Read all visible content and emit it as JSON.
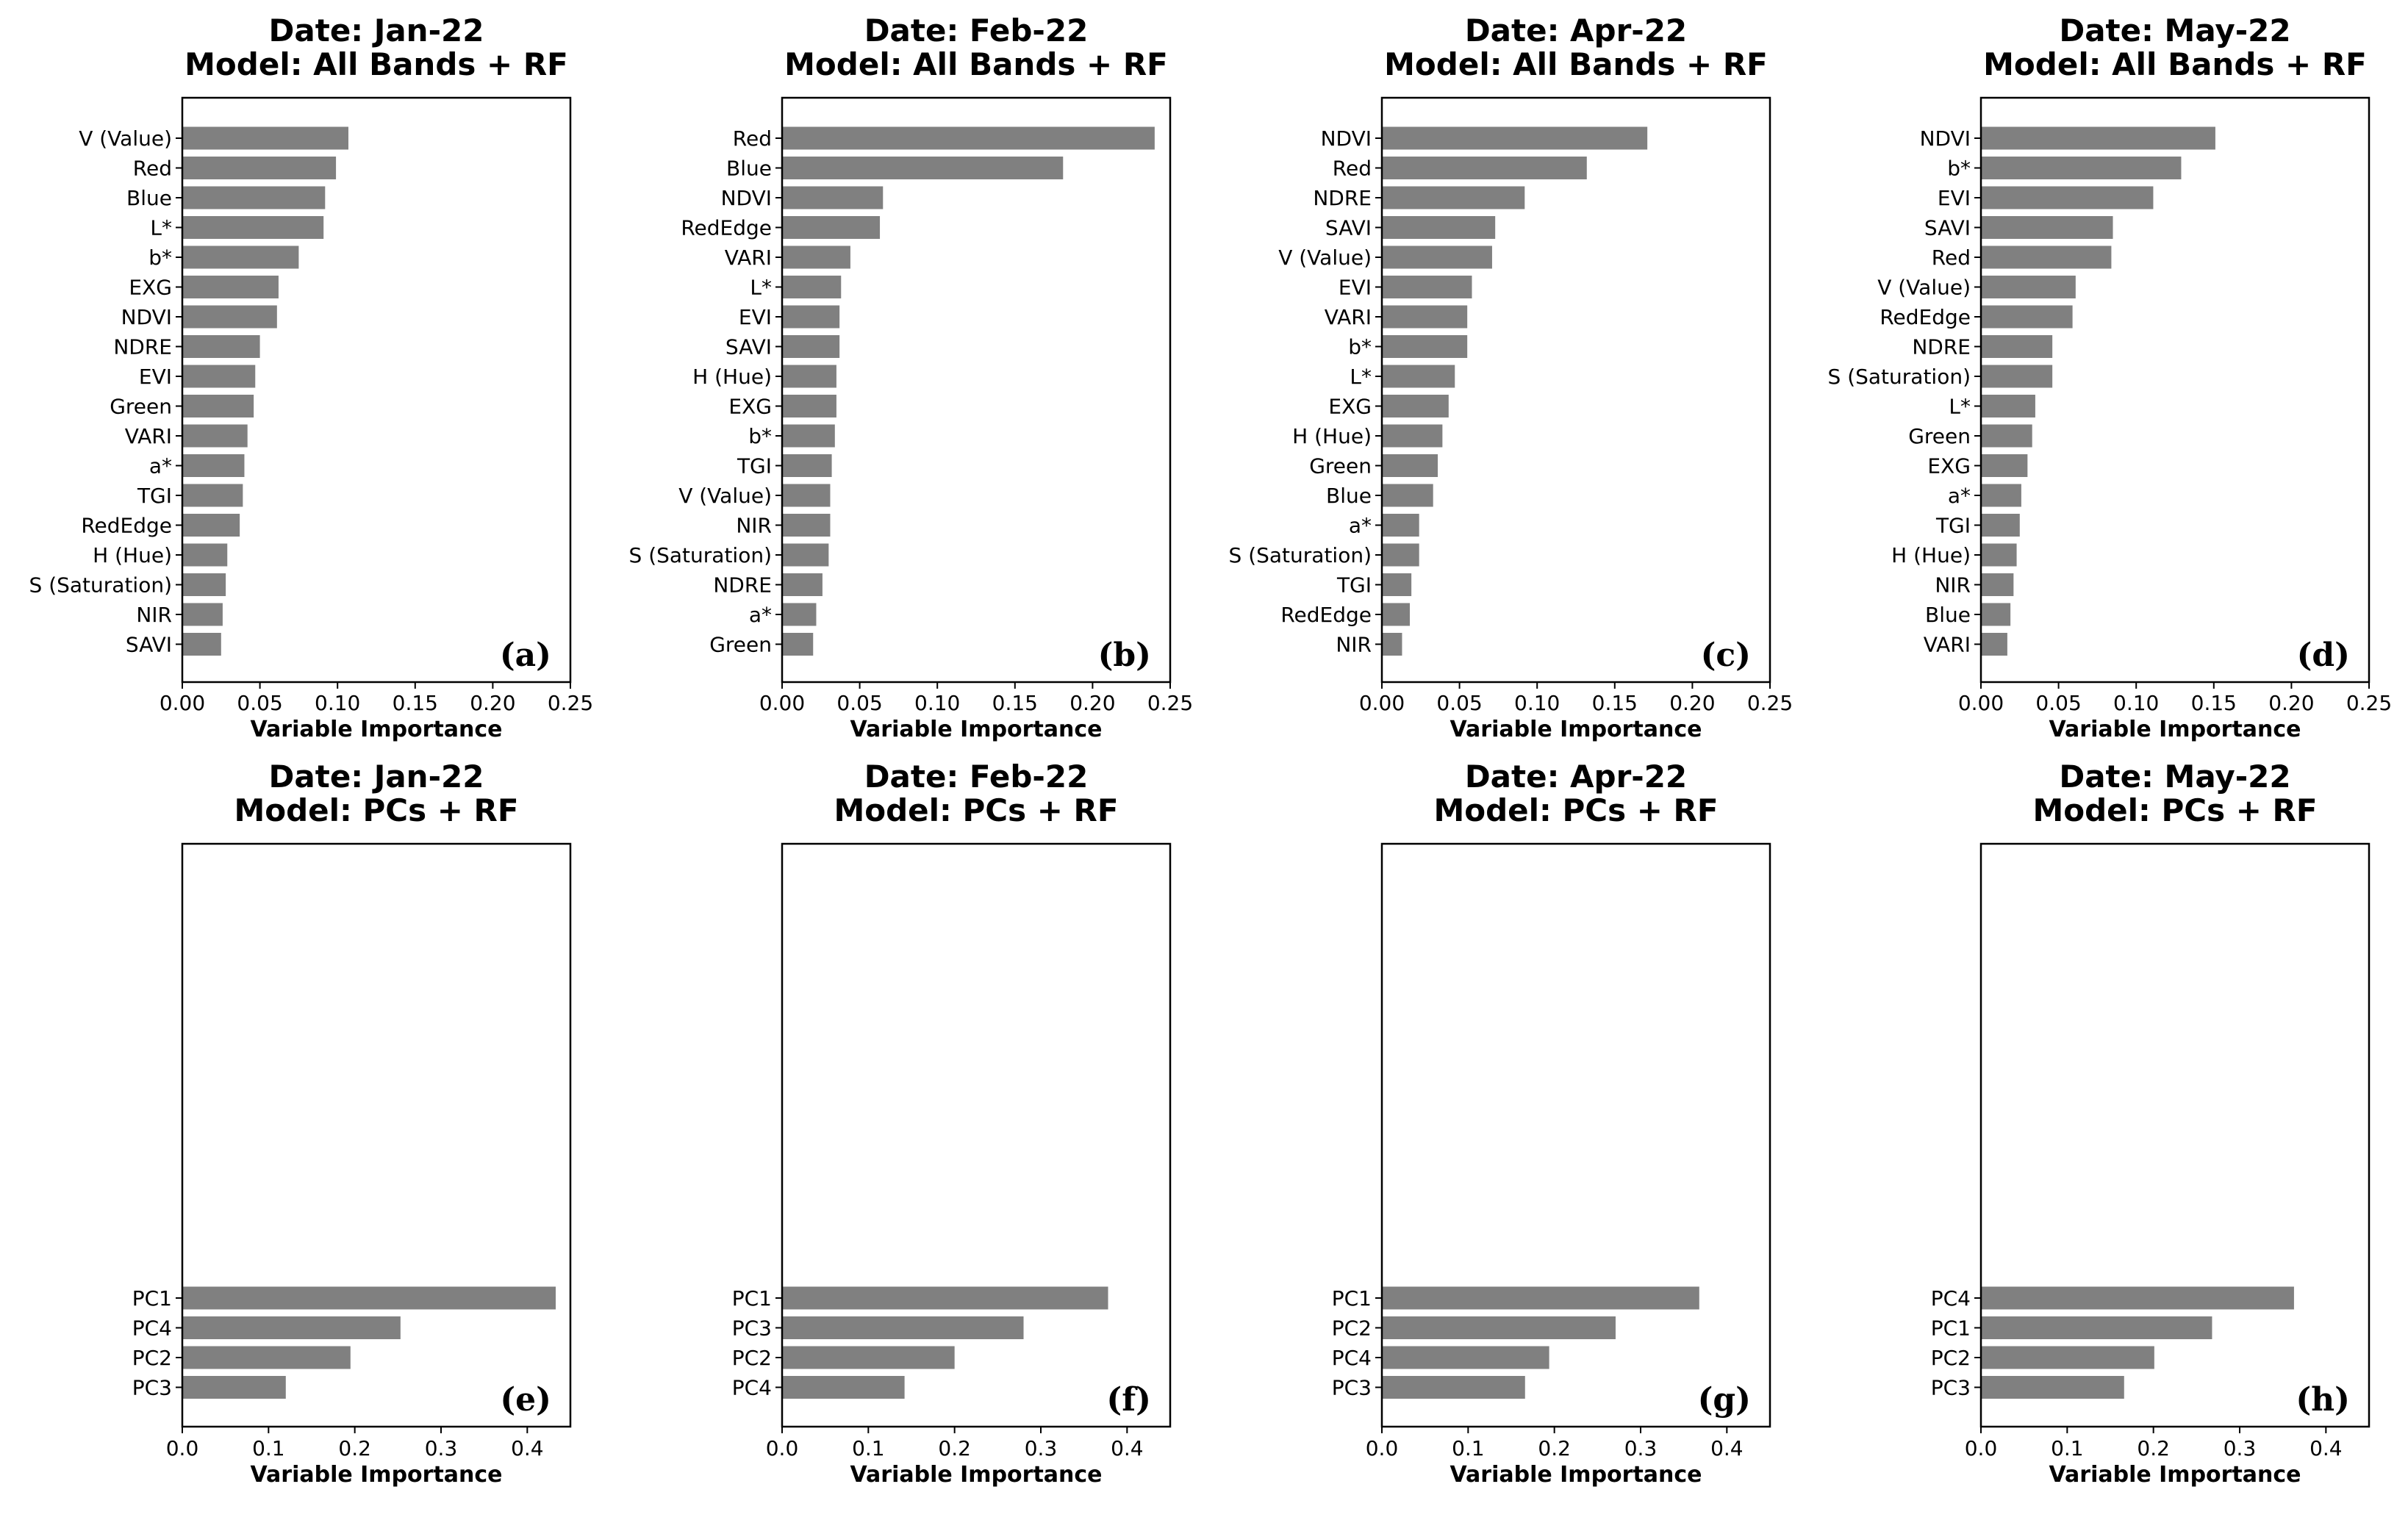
{
  "colors": {
    "bar": "#808080",
    "axis": "#000000"
  },
  "chart_data": [
    {
      "type": "bar",
      "orientation": "horizontal",
      "panel_label": "(a)",
      "title": [
        "Date: Jan-22",
        "Model: All Bands + RF"
      ],
      "xlabel": "Variable Importance",
      "xlim": [
        0,
        0.25
      ],
      "xticks": [
        0,
        0.05,
        0.1,
        0.15,
        0.2,
        0.25
      ],
      "xticklabels": [
        "0.00",
        "0.05",
        "0.10",
        "0.15",
        "0.20",
        "0.25"
      ],
      "categories": [
        "V (Value)",
        "Red",
        "Blue",
        "L*",
        "b*",
        "EXG",
        "NDVI",
        "NDRE",
        "EVI",
        "Green",
        "VARI",
        "a*",
        "TGI",
        "RedEdge",
        "H (Hue)",
        "S (Saturation)",
        "NIR",
        "SAVI"
      ],
      "values": [
        0.107,
        0.099,
        0.092,
        0.091,
        0.075,
        0.062,
        0.061,
        0.05,
        0.047,
        0.046,
        0.042,
        0.04,
        0.039,
        0.037,
        0.029,
        0.028,
        0.026,
        0.025
      ]
    },
    {
      "type": "bar",
      "orientation": "horizontal",
      "panel_label": "(b)",
      "title": [
        "Date: Feb-22",
        "Model: All Bands + RF"
      ],
      "xlabel": "Variable Importance",
      "xlim": [
        0,
        0.25
      ],
      "xticks": [
        0,
        0.05,
        0.1,
        0.15,
        0.2,
        0.25
      ],
      "xticklabels": [
        "0.00",
        "0.05",
        "0.10",
        "0.15",
        "0.20",
        "0.25"
      ],
      "categories": [
        "Red",
        "Blue",
        "NDVI",
        "RedEdge",
        "VARI",
        "L*",
        "EVI",
        "SAVI",
        "H (Hue)",
        "EXG",
        "b*",
        "TGI",
        "V (Value)",
        "NIR",
        "S (Saturation)",
        "NDRE",
        "a*",
        "Green"
      ],
      "values": [
        0.24,
        0.181,
        0.065,
        0.063,
        0.044,
        0.038,
        0.037,
        0.037,
        0.035,
        0.035,
        0.034,
        0.032,
        0.031,
        0.031,
        0.03,
        0.026,
        0.022,
        0.02
      ]
    },
    {
      "type": "bar",
      "orientation": "horizontal",
      "panel_label": "(c)",
      "title": [
        "Date: Apr-22",
        "Model: All Bands + RF"
      ],
      "xlabel": "Variable Importance",
      "xlim": [
        0,
        0.25
      ],
      "xticks": [
        0,
        0.05,
        0.1,
        0.15,
        0.2,
        0.25
      ],
      "xticklabels": [
        "0.00",
        "0.05",
        "0.10",
        "0.15",
        "0.20",
        "0.25"
      ],
      "categories": [
        "NDVI",
        "Red",
        "NDRE",
        "SAVI",
        "V (Value)",
        "EVI",
        "VARI",
        "b*",
        "L*",
        "EXG",
        "H (Hue)",
        "Green",
        "Blue",
        "a*",
        "S (Saturation)",
        "TGI",
        "RedEdge",
        "NIR"
      ],
      "values": [
        0.171,
        0.132,
        0.092,
        0.073,
        0.071,
        0.058,
        0.055,
        0.055,
        0.047,
        0.043,
        0.039,
        0.036,
        0.033,
        0.024,
        0.024,
        0.019,
        0.018,
        0.013
      ]
    },
    {
      "type": "bar",
      "orientation": "horizontal",
      "panel_label": "(d)",
      "title": [
        "Date: May-22",
        "Model: All Bands + RF"
      ],
      "xlabel": "Variable Importance",
      "xlim": [
        0,
        0.25
      ],
      "xticks": [
        0,
        0.05,
        0.1,
        0.15,
        0.2,
        0.25
      ],
      "xticklabels": [
        "0.00",
        "0.05",
        "0.10",
        "0.15",
        "0.20",
        "0.25"
      ],
      "categories": [
        "NDVI",
        "b*",
        "EVI",
        "SAVI",
        "Red",
        "V (Value)",
        "RedEdge",
        "NDRE",
        "S (Saturation)",
        "L*",
        "Green",
        "EXG",
        "a*",
        "TGI",
        "H (Hue)",
        "NIR",
        "Blue",
        "VARI"
      ],
      "values": [
        0.151,
        0.129,
        0.111,
        0.085,
        0.084,
        0.061,
        0.059,
        0.046,
        0.046,
        0.035,
        0.033,
        0.03,
        0.026,
        0.025,
        0.023,
        0.021,
        0.019,
        0.017
      ]
    },
    {
      "type": "bar",
      "orientation": "horizontal",
      "panel_label": "(e)",
      "title": [
        "Date: Jan-22",
        "Model: PCs + RF"
      ],
      "xlabel": "Variable Importance",
      "xlim": [
        0,
        0.45
      ],
      "xticks": [
        0,
        0.1,
        0.2,
        0.3,
        0.4
      ],
      "xticklabels": [
        "0.0",
        "0.1",
        "0.2",
        "0.3",
        "0.4"
      ],
      "categories": [
        "PC1",
        "PC4",
        "PC2",
        "PC3"
      ],
      "values": [
        0.433,
        0.253,
        0.195,
        0.12
      ]
    },
    {
      "type": "bar",
      "orientation": "horizontal",
      "panel_label": "(f)",
      "title": [
        "Date: Feb-22",
        "Model: PCs + RF"
      ],
      "xlabel": "Variable Importance",
      "xlim": [
        0,
        0.45
      ],
      "xticks": [
        0,
        0.1,
        0.2,
        0.3,
        0.4
      ],
      "xticklabels": [
        "0.0",
        "0.1",
        "0.2",
        "0.3",
        "0.4"
      ],
      "categories": [
        "PC1",
        "PC3",
        "PC2",
        "PC4"
      ],
      "values": [
        0.378,
        0.28,
        0.2,
        0.142
      ]
    },
    {
      "type": "bar",
      "orientation": "horizontal",
      "panel_label": "(g)",
      "title": [
        "Date: Apr-22",
        "Model: PCs + RF"
      ],
      "xlabel": "Variable Importance",
      "xlim": [
        0,
        0.45
      ],
      "xticks": [
        0,
        0.1,
        0.2,
        0.3,
        0.4
      ],
      "xticklabels": [
        "0.0",
        "0.1",
        "0.2",
        "0.3",
        "0.4"
      ],
      "categories": [
        "PC1",
        "PC2",
        "PC4",
        "PC3"
      ],
      "values": [
        0.368,
        0.271,
        0.194,
        0.166
      ]
    },
    {
      "type": "bar",
      "orientation": "horizontal",
      "panel_label": "(h)",
      "title": [
        "Date: May-22",
        "Model: PCs + RF"
      ],
      "xlabel": "Variable Importance",
      "xlim": [
        0,
        0.45
      ],
      "xticks": [
        0,
        0.1,
        0.2,
        0.3,
        0.4
      ],
      "xticklabels": [
        "0.0",
        "0.1",
        "0.2",
        "0.3",
        "0.4"
      ],
      "categories": [
        "PC4",
        "PC1",
        "PC2",
        "PC3"
      ],
      "values": [
        0.363,
        0.268,
        0.201,
        0.166
      ]
    }
  ]
}
